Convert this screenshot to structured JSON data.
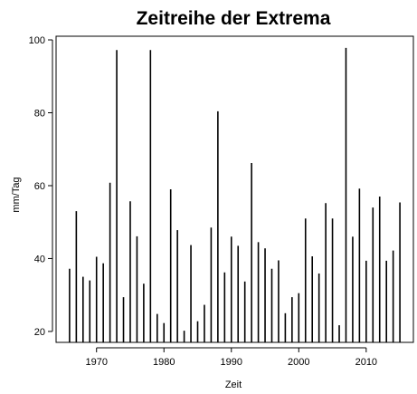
{
  "chart_data": {
    "type": "bar",
    "title": "Zeitreihe der Extrema",
    "xlabel": "Zeit",
    "ylabel": "mm/Tag",
    "xlim": [
      1964,
      2017
    ],
    "ylim": [
      17,
      101
    ],
    "xticks": [
      1970,
      1980,
      1990,
      2000,
      2010
    ],
    "yticks": [
      20,
      40,
      60,
      80,
      100
    ],
    "grid": false,
    "x": [
      1966,
      1967,
      1968,
      1969,
      1970,
      1971,
      1972,
      1973,
      1974,
      1975,
      1976,
      1977,
      1978,
      1979,
      1980,
      1981,
      1982,
      1983,
      1984,
      1985,
      1986,
      1987,
      1988,
      1989,
      1990,
      1991,
      1992,
      1993,
      1994,
      1995,
      1996,
      1997,
      1998,
      1999,
      2000,
      2001,
      2002,
      2003,
      2004,
      2005,
      2006,
      2007,
      2008,
      2009,
      2010,
      2011,
      2012,
      2013,
      2014,
      2015
    ],
    "values": [
      37.2,
      53.0,
      35.0,
      34.0,
      40.5,
      38.7,
      60.8,
      97.2,
      29.4,
      55.7,
      46.1,
      33.1,
      97.2,
      24.8,
      22.3,
      59.0,
      47.8,
      20.2,
      43.7,
      22.8,
      27.3,
      48.5,
      80.4,
      36.2,
      46.0,
      43.5,
      33.7,
      66.2,
      44.5,
      42.8,
      37.2,
      39.5,
      25.0,
      29.4,
      30.5,
      51.0,
      40.6,
      35.9,
      55.2,
      51.0,
      21.7,
      97.8,
      46.0,
      59.2,
      39.4,
      54.0,
      57.0,
      39.4,
      42.2,
      55.4
    ]
  }
}
